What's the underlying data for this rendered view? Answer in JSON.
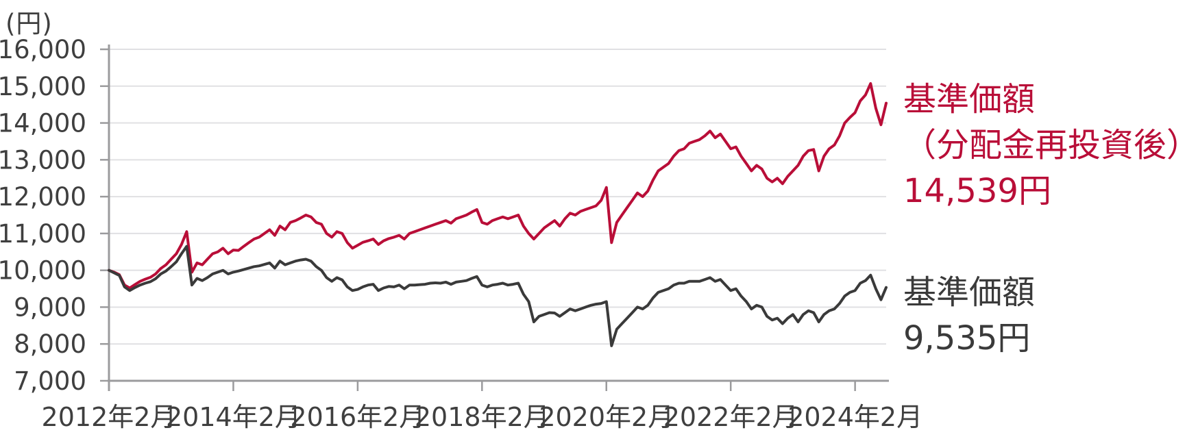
{
  "axis_unit_label": "(円)",
  "colors": {
    "reinvested_line": "#B90E38",
    "nav_line": "#3A3A3A",
    "gridline": "#E0E0E3",
    "axis": "#9B9B9D",
    "tick_label": "#3F3F3F"
  },
  "legend": {
    "reinvested": {
      "title": "基準価額",
      "subtitle": "（分配金再投資後）",
      "value": "14,539円"
    },
    "nav": {
      "title": "基準価額",
      "value": "9,535円"
    }
  },
  "chart_data": {
    "type": "line",
    "unit": "円",
    "grid": "horizontal",
    "legend_position": "right",
    "ylim": [
      7000,
      16000
    ],
    "ytick_values": [
      7000,
      8000,
      9000,
      10000,
      11000,
      12000,
      13000,
      14000,
      15000,
      16000
    ],
    "ytick_labels": [
      "7,000",
      "8,000",
      "9,000",
      "10,000",
      "11,000",
      "12,000",
      "13,000",
      "14,000",
      "15,000",
      "16,000"
    ],
    "xtick_labels": [
      "2012年2月",
      "2014年2月",
      "2016年2月",
      "2018年2月",
      "2020年2月",
      "2022年2月",
      "2024年2月"
    ],
    "xtick_month_interval": 24,
    "x_start_month": "2012-02",
    "x_end_month": "2024-08",
    "x_resolution": "monthly",
    "series": [
      {
        "name": "基準価額（分配金再投資後）",
        "color_key": "reinvested_line",
        "final_value": 14539,
        "values": [
          10000,
          9950,
          9880,
          9600,
          9520,
          9610,
          9700,
          9760,
          9810,
          9900,
          10050,
          10150,
          10300,
          10450,
          10700,
          11050,
          9950,
          10200,
          10150,
          10300,
          10450,
          10500,
          10600,
          10450,
          10550,
          10540,
          10650,
          10750,
          10850,
          10900,
          11000,
          11100,
          10950,
          11200,
          11100,
          11300,
          11350,
          11420,
          11500,
          11450,
          11300,
          11250,
          11000,
          10900,
          11050,
          11000,
          10750,
          10600,
          10680,
          10760,
          10800,
          10850,
          10700,
          10800,
          10860,
          10900,
          10950,
          10850,
          11000,
          11050,
          11100,
          11150,
          11200,
          11250,
          11300,
          11350,
          11280,
          11400,
          11450,
          11500,
          11580,
          11650,
          11300,
          11250,
          11350,
          11400,
          11450,
          11400,
          11450,
          11500,
          11200,
          11000,
          10850,
          11000,
          11150,
          11250,
          11350,
          11200,
          11400,
          11550,
          11500,
          11600,
          11650,
          11700,
          11750,
          11900,
          12250,
          10750,
          11300,
          11500,
          11700,
          11900,
          12100,
          12000,
          12150,
          12450,
          12700,
          12800,
          12900,
          13100,
          13250,
          13300,
          13450,
          13500,
          13550,
          13650,
          13780,
          13600,
          13700,
          13500,
          13300,
          13350,
          13100,
          12900,
          12700,
          12850,
          12750,
          12500,
          12400,
          12500,
          12350,
          12550,
          12700,
          12850,
          13100,
          13250,
          13280,
          12700,
          13100,
          13300,
          13400,
          13650,
          14000,
          14150,
          14280,
          14600,
          14760,
          15070,
          14400,
          13950,
          14539
        ]
      },
      {
        "name": "基準価額",
        "color_key": "nav_line",
        "final_value": 9535,
        "values": [
          10000,
          9930,
          9860,
          9550,
          9450,
          9530,
          9600,
          9650,
          9690,
          9770,
          9900,
          9980,
          10100,
          10230,
          10450,
          10650,
          9600,
          9780,
          9720,
          9800,
          9900,
          9950,
          10000,
          9900,
          9950,
          9980,
          10020,
          10060,
          10100,
          10120,
          10160,
          10200,
          10060,
          10250,
          10150,
          10200,
          10250,
          10280,
          10300,
          10250,
          10100,
          10000,
          9800,
          9700,
          9800,
          9740,
          9550,
          9450,
          9480,
          9550,
          9600,
          9620,
          9450,
          9520,
          9560,
          9550,
          9600,
          9500,
          9600,
          9600,
          9610,
          9620,
          9650,
          9660,
          9650,
          9680,
          9620,
          9680,
          9700,
          9720,
          9780,
          9830,
          9600,
          9550,
          9600,
          9620,
          9650,
          9600,
          9620,
          9650,
          9350,
          9150,
          8600,
          8750,
          8800,
          8850,
          8840,
          8750,
          8850,
          8950,
          8900,
          8950,
          9000,
          9050,
          9080,
          9100,
          9150,
          7950,
          8400,
          8550,
          8700,
          8850,
          9000,
          8950,
          9050,
          9250,
          9400,
          9450,
          9500,
          9600,
          9650,
          9650,
          9700,
          9700,
          9700,
          9750,
          9800,
          9700,
          9750,
          9600,
          9450,
          9500,
          9300,
          9150,
          8950,
          9050,
          9000,
          8750,
          8650,
          8700,
          8550,
          8700,
          8800,
          8600,
          8800,
          8900,
          8850,
          8600,
          8800,
          8900,
          8950,
          9100,
          9300,
          9400,
          9450,
          9650,
          9720,
          9870,
          9500,
          9200,
          9535
        ]
      }
    ]
  }
}
